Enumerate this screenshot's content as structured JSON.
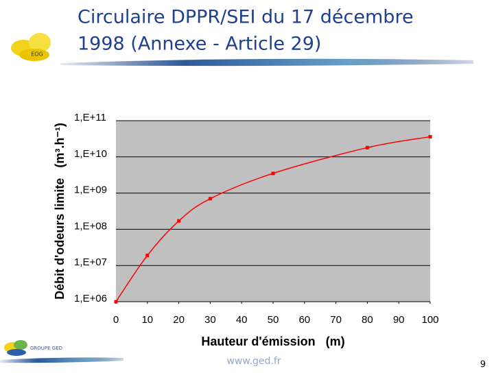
{
  "header": {
    "title_lines": [
      "Circulaire DPPR/SEI du 17 décembre",
      "1998 (Annexe - Article 29)"
    ],
    "logo_text": "EOG"
  },
  "chart_data": {
    "type": "line",
    "x": [
      0,
      10,
      20,
      30,
      50,
      80,
      100
    ],
    "values": [
      1000000,
      19000000,
      170000000,
      700000000,
      3500000000,
      18000000000,
      36000000000
    ],
    "color": "#ff0000",
    "xlim": [
      0,
      100
    ],
    "xticks": [
      0,
      10,
      20,
      30,
      40,
      50,
      60,
      70,
      80,
      90,
      100
    ],
    "ylim": [
      1000000,
      100000000000
    ],
    "log_y": true,
    "yticks": [
      {
        "value": 1000000,
        "label": "1,E+06"
      },
      {
        "value": 10000000,
        "label": "1,E+07"
      },
      {
        "value": 100000000,
        "label": "1,E+08"
      },
      {
        "value": 1000000000,
        "label": "1,E+09"
      },
      {
        "value": 10000000000,
        "label": "1,E+10"
      },
      {
        "value": 100000000000,
        "label": "1,E+11"
      }
    ],
    "grid": true,
    "xlabel": "Hauteur d'émission   (m)",
    "ylabel": "Débit d'odeurs limite   (m³.h⁻¹)"
  },
  "footer": {
    "logo_text": "GROUPE GED",
    "url": "www.ged.fr",
    "page": "9"
  }
}
